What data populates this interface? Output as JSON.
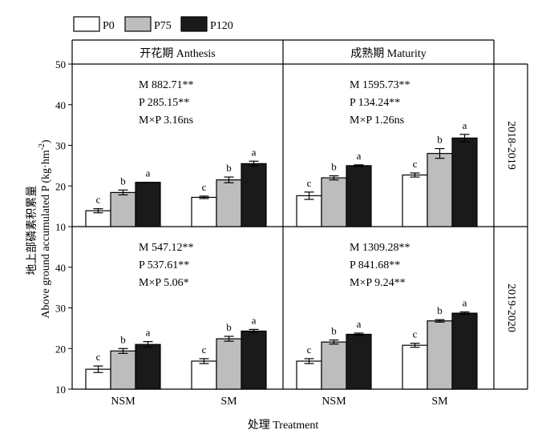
{
  "legend": [
    {
      "name": "P0",
      "color": "#ffffff"
    },
    {
      "name": "P75",
      "color": "#bdbdbd"
    },
    {
      "name": "P120",
      "color": "#1a1a1a"
    }
  ],
  "ylabel_cn": "地上部磷素积累量",
  "ylabel_en": "Above ground accumulated P (kg·hm",
  "ylabel_sup": "-2",
  "ylabel_close": ")",
  "xlabel": "处理 Treatment",
  "chart_data": {
    "type": "bar",
    "categories": [
      "NSM",
      "SM"
    ],
    "ylim": [
      10,
      50
    ],
    "yticks": [
      "10",
      "20",
      "30",
      "40",
      "50"
    ],
    "columns": [
      "开花期 Anthesis",
      "成熟期 Maturity"
    ],
    "rows": [
      "2018-2019",
      "2019-2020"
    ],
    "panels": [
      {
        "row": 0,
        "col": 0,
        "stats": [
          "M 882.71**",
          "P 285.15**",
          "M×P 3.16ns"
        ],
        "series": [
          {
            "name": "P0",
            "values": [
              13.9,
              17.2
            ],
            "errors": [
              0.5,
              0.3
            ],
            "letters": [
              "c",
              "c"
            ]
          },
          {
            "name": "P75",
            "values": [
              18.4,
              21.5
            ],
            "errors": [
              0.6,
              0.7
            ],
            "letters": [
              "b",
              "b"
            ]
          },
          {
            "name": "P120",
            "values": [
              20.9,
              25.5
            ],
            "errors": [
              0.0,
              0.6
            ],
            "letters": [
              "a",
              "a"
            ]
          }
        ]
      },
      {
        "row": 0,
        "col": 1,
        "stats": [
          "M 1595.73**",
          "P 134.24**",
          "M×P 1.26ns"
        ],
        "series": [
          {
            "name": "P0",
            "values": [
              17.6,
              22.7
            ],
            "errors": [
              0.9,
              0.5
            ],
            "letters": [
              "c",
              "c"
            ]
          },
          {
            "name": "P75",
            "values": [
              22.0,
              28.0
            ],
            "errors": [
              0.5,
              1.2
            ],
            "letters": [
              "b",
              "b"
            ]
          },
          {
            "name": "P120",
            "values": [
              25.0,
              31.8
            ],
            "errors": [
              0.2,
              0.9
            ],
            "letters": [
              "a",
              "a"
            ]
          }
        ]
      },
      {
        "row": 1,
        "col": 0,
        "stats": [
          "M 547.12**",
          "P 537.61**",
          "M×P 5.06*"
        ],
        "series": [
          {
            "name": "P0",
            "values": [
              14.9,
              16.9
            ],
            "errors": [
              0.8,
              0.6
            ],
            "letters": [
              "c",
              "c"
            ]
          },
          {
            "name": "P75",
            "values": [
              19.4,
              22.4
            ],
            "errors": [
              0.6,
              0.6
            ],
            "letters": [
              "b",
              "b"
            ]
          },
          {
            "name": "P120",
            "values": [
              21.0,
              24.3
            ],
            "errors": [
              0.7,
              0.4
            ],
            "letters": [
              "a",
              "a"
            ]
          }
        ]
      },
      {
        "row": 1,
        "col": 1,
        "stats": [
          "M 1309.28**",
          "P 841.68**",
          "M×P 9.24**"
        ],
        "series": [
          {
            "name": "P0",
            "values": [
              16.9,
              20.8
            ],
            "errors": [
              0.6,
              0.5
            ],
            "letters": [
              "c",
              "c"
            ]
          },
          {
            "name": "P75",
            "values": [
              21.6,
              26.8
            ],
            "errors": [
              0.5,
              0.3
            ],
            "letters": [
              "b",
              "b"
            ]
          },
          {
            "name": "P120",
            "values": [
              23.5,
              28.7
            ],
            "errors": [
              0.3,
              0.3
            ],
            "letters": [
              "a",
              "a"
            ]
          }
        ]
      }
    ]
  }
}
